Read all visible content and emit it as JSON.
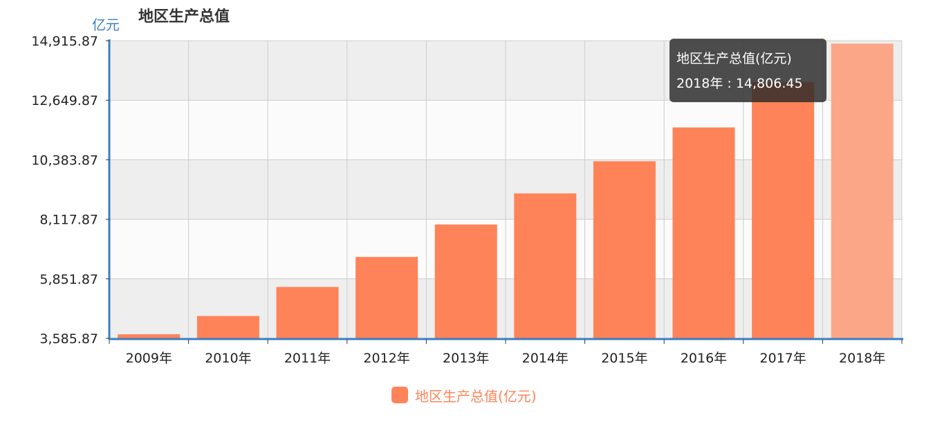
{
  "header": {
    "unit": "亿元",
    "title": "地区生产总值"
  },
  "colors": {
    "bar": "#ff8358",
    "bar_highlight": "#fca688",
    "axis": "#3a7fc1",
    "grid": "#cccccc",
    "band_shaded": "#eeeeee",
    "band_light": "#fbfbfb",
    "legend_text": "#ff8358"
  },
  "chart_data": {
    "type": "bar",
    "title": "地区生产总值",
    "ylabel": "亿元",
    "xlabel": "",
    "categories": [
      "2009年",
      "2010年",
      "2011年",
      "2012年",
      "2013年",
      "2014年",
      "2015年",
      "2016年",
      "2017年",
      "2018年"
    ],
    "series": [
      {
        "name": "地区生产总值(亿元)",
        "values": [
          3740,
          4437,
          5543,
          6685,
          7919,
          9103,
          10328,
          11615,
          13342,
          14806.45
        ]
      }
    ],
    "ylim": [
      3585.87,
      14915.87
    ],
    "yticks": [
      "3,585.87",
      "5,851.87",
      "8,117.87",
      "10,383.87",
      "12,649.87",
      "14,915.87"
    ],
    "ytick_values": [
      3585.87,
      5851.87,
      8117.87,
      10383.87,
      12649.87,
      14915.87
    ],
    "grid": true,
    "legend_position": "bottom-center",
    "highlighted_category": "2018年"
  },
  "tooltip": {
    "line1": "地区生产总值(亿元)",
    "line2": "2018年 : 14,806.45"
  },
  "legend": {
    "label": "地区生产总值(亿元)"
  }
}
